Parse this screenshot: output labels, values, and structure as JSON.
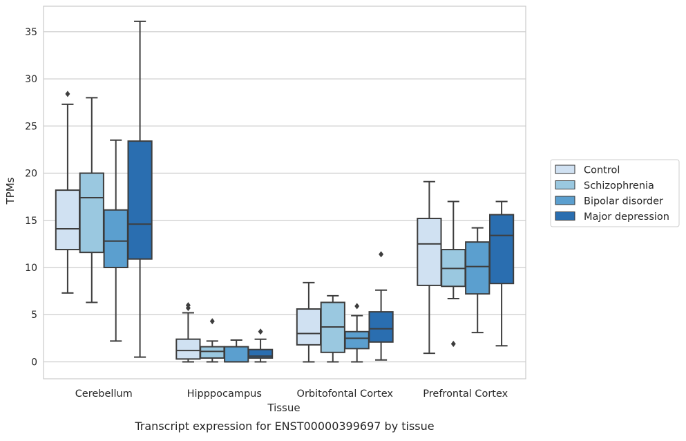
{
  "chart_data": {
    "type": "box",
    "xlabel": "Tissue",
    "ylabel": "TPMs",
    "caption": "Transcript expression for ENST00000399697 by tissue",
    "ylim": [
      -1.8,
      37.7
    ],
    "yticks": [
      0,
      5,
      10,
      15,
      20,
      25,
      30,
      35
    ],
    "grid": true,
    "legend_position": "right",
    "categories": [
      "Cerebellum",
      "Hipppocampus",
      "Orbitofontal Cortex",
      "Prefrontal Cortex"
    ],
    "series": [
      {
        "name": "Control",
        "color": "#d0e1f2",
        "boxes": [
          {
            "whislo": 7.3,
            "q1": 11.9,
            "med": 14.1,
            "q3": 18.2,
            "whishi": 27.3,
            "fliers": [
              28.4
            ]
          },
          {
            "whislo": 0.0,
            "q1": 0.3,
            "med": 1.2,
            "q3": 2.4,
            "whishi": 5.2,
            "fliers": [
              5.7,
              6.0
            ]
          },
          {
            "whislo": 0.0,
            "q1": 1.8,
            "med": 3.0,
            "q3": 5.6,
            "whishi": 8.4,
            "fliers": []
          },
          {
            "whislo": 0.9,
            "q1": 8.1,
            "med": 12.5,
            "q3": 15.2,
            "whishi": 19.1,
            "fliers": []
          }
        ]
      },
      {
        "name": "Schizophrenia",
        "color": "#9ac8e0",
        "boxes": [
          {
            "whislo": 6.3,
            "q1": 11.6,
            "med": 17.4,
            "q3": 20.0,
            "whishi": 28.0,
            "fliers": []
          },
          {
            "whislo": 0.0,
            "q1": 0.4,
            "med": 1.1,
            "q3": 1.6,
            "whishi": 2.2,
            "fliers": [
              4.3
            ]
          },
          {
            "whislo": 0.0,
            "q1": 1.0,
            "med": 3.7,
            "q3": 6.3,
            "whishi": 7.0,
            "fliers": []
          },
          {
            "whislo": 6.7,
            "q1": 8.0,
            "med": 9.9,
            "q3": 11.9,
            "whishi": 17.0,
            "fliers": [
              1.9
            ]
          }
        ]
      },
      {
        "name": "Bipolar disorder",
        "color": "#5b9fcf",
        "boxes": [
          {
            "whislo": 2.2,
            "q1": 10.0,
            "med": 12.8,
            "q3": 16.1,
            "whishi": 23.5,
            "fliers": []
          },
          {
            "whislo": 0.0,
            "q1": 0.0,
            "med": 0.0,
            "q3": 1.6,
            "whishi": 2.3,
            "fliers": []
          },
          {
            "whislo": 0.0,
            "q1": 1.4,
            "med": 2.5,
            "q3": 3.2,
            "whishi": 4.9,
            "fliers": [
              5.9
            ]
          },
          {
            "whislo": 3.1,
            "q1": 7.2,
            "med": 10.1,
            "q3": 12.7,
            "whishi": 14.2,
            "fliers": []
          }
        ]
      },
      {
        "name": "Major depression",
        "color": "#2a6eb0",
        "boxes": [
          {
            "whislo": 0.5,
            "q1": 10.9,
            "med": 14.6,
            "q3": 23.4,
            "whishi": 36.1,
            "fliers": []
          },
          {
            "whislo": 0.0,
            "q1": 0.4,
            "med": 0.6,
            "q3": 1.3,
            "whishi": 2.4,
            "fliers": [
              3.2
            ]
          },
          {
            "whislo": 0.2,
            "q1": 2.1,
            "med": 3.5,
            "q3": 5.3,
            "whishi": 7.6,
            "fliers": [
              11.4
            ]
          },
          {
            "whislo": 1.7,
            "q1": 8.3,
            "med": 13.4,
            "q3": 15.6,
            "whishi": 17.0,
            "fliers": []
          }
        ]
      }
    ]
  }
}
